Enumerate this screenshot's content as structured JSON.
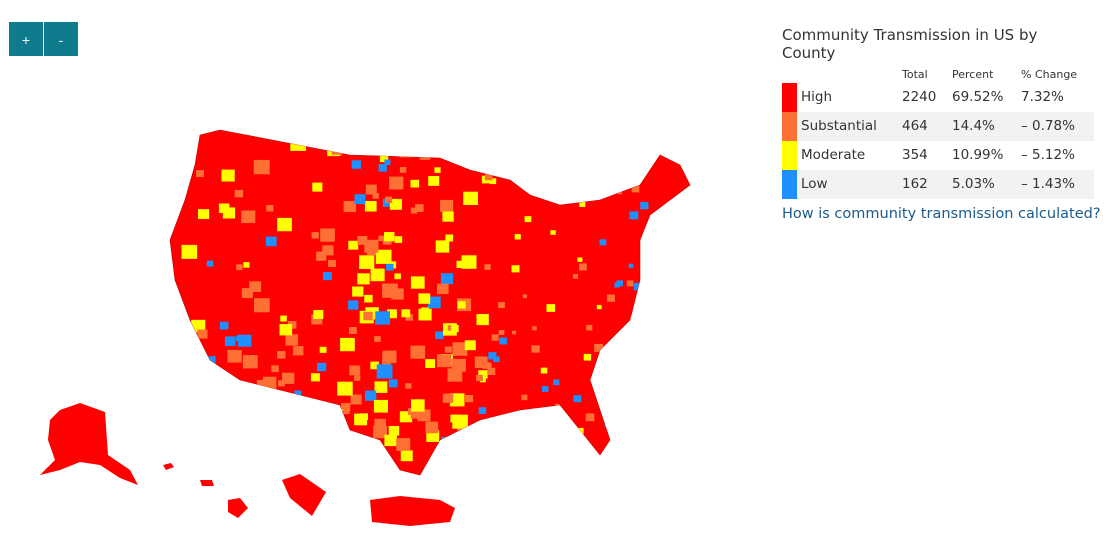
{
  "controls": {
    "zoom_in": "+",
    "zoom_out": "-"
  },
  "legend": {
    "title": "Community Transmission in US by County",
    "columns": [
      "Total",
      "Percent",
      "% Change"
    ],
    "rows": [
      {
        "level": "High",
        "color": "#ff0000",
        "total": "2240",
        "percent": "69.52%",
        "change": "7.32%"
      },
      {
        "level": "Substantial",
        "color": "#ff7034",
        "total": "464",
        "percent": "14.4%",
        "change": "– 0.78%"
      },
      {
        "level": "Moderate",
        "color": "#ffff00",
        "total": "354",
        "percent": "10.99%",
        "change": "– 5.12%"
      },
      {
        "level": "Low",
        "color": "#1e90ff",
        "total": "162",
        "percent": "5.03%",
        "change": "– 1.43%"
      }
    ]
  },
  "link": "How is community transmission calculated?"
}
